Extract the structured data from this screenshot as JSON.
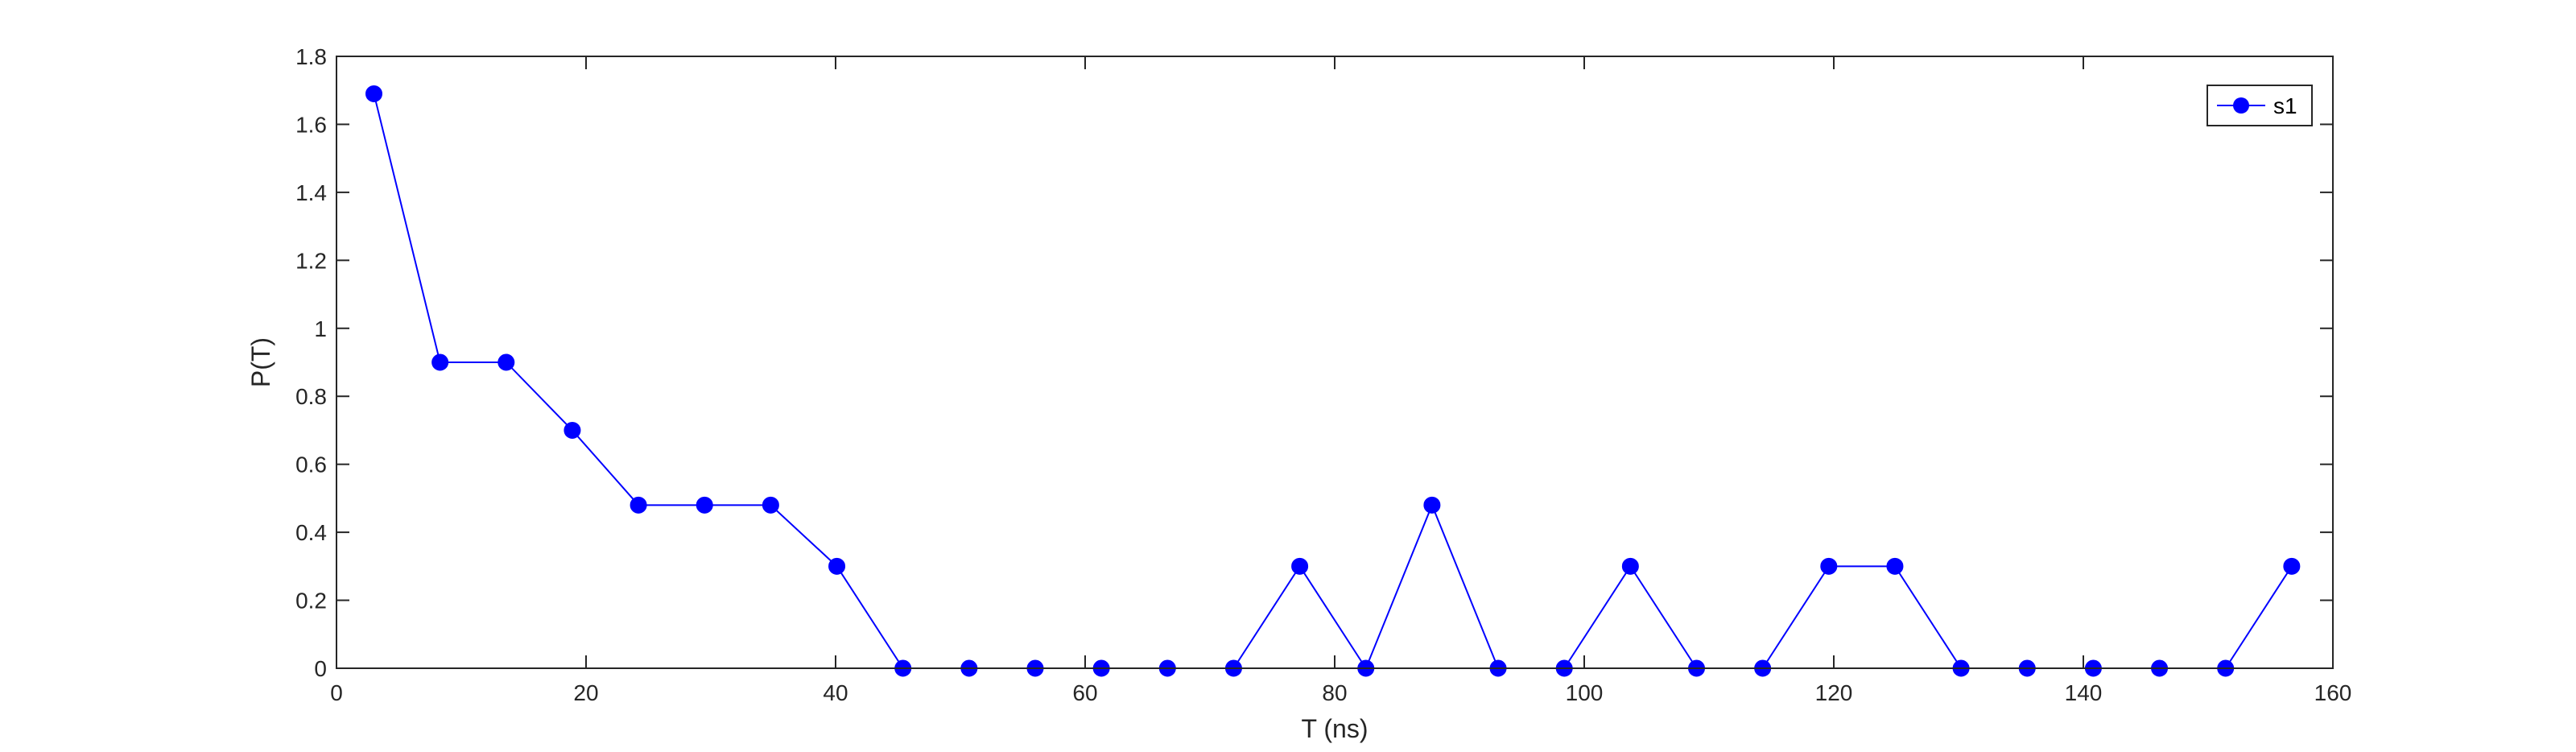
{
  "chart_data": {
    "type": "line",
    "title": "",
    "xlabel": "T (ns)",
    "ylabel": "P(T)",
    "xlim": [
      0,
      160
    ],
    "ylim": [
      0,
      1.8
    ],
    "xticks": [
      "0",
      "20",
      "40",
      "60",
      "80",
      "100",
      "120",
      "140",
      "160"
    ],
    "yticks": [
      "0",
      "0.2",
      "0.4",
      "0.6",
      "0.8",
      "1",
      "1.2",
      "1.4",
      "1.6",
      "1.8"
    ],
    "grid": false,
    "legend_position": "top-right",
    "series": [
      {
        "name": "s1",
        "color": "#0000ff",
        "marker": "circle",
        "x": [
          3.0,
          8.3,
          13.6,
          18.9,
          24.2,
          29.5,
          34.8,
          40.1,
          45.4,
          50.7,
          56.0,
          61.3,
          66.6,
          71.9,
          77.2,
          82.5,
          87.8,
          93.1,
          98.4,
          103.7,
          109.0,
          114.3,
          119.6,
          124.9,
          130.2,
          135.5,
          140.8,
          146.1,
          151.4,
          156.7
        ],
        "y": [
          1.69,
          0.9,
          0.9,
          0.7,
          0.48,
          0.48,
          0.48,
          0.3,
          0,
          0,
          0,
          0,
          0,
          0,
          0.3,
          0,
          0.48,
          0,
          0,
          0.3,
          0,
          0,
          0.3,
          0.3,
          0,
          0,
          0,
          0,
          0,
          0.3
        ]
      }
    ]
  }
}
